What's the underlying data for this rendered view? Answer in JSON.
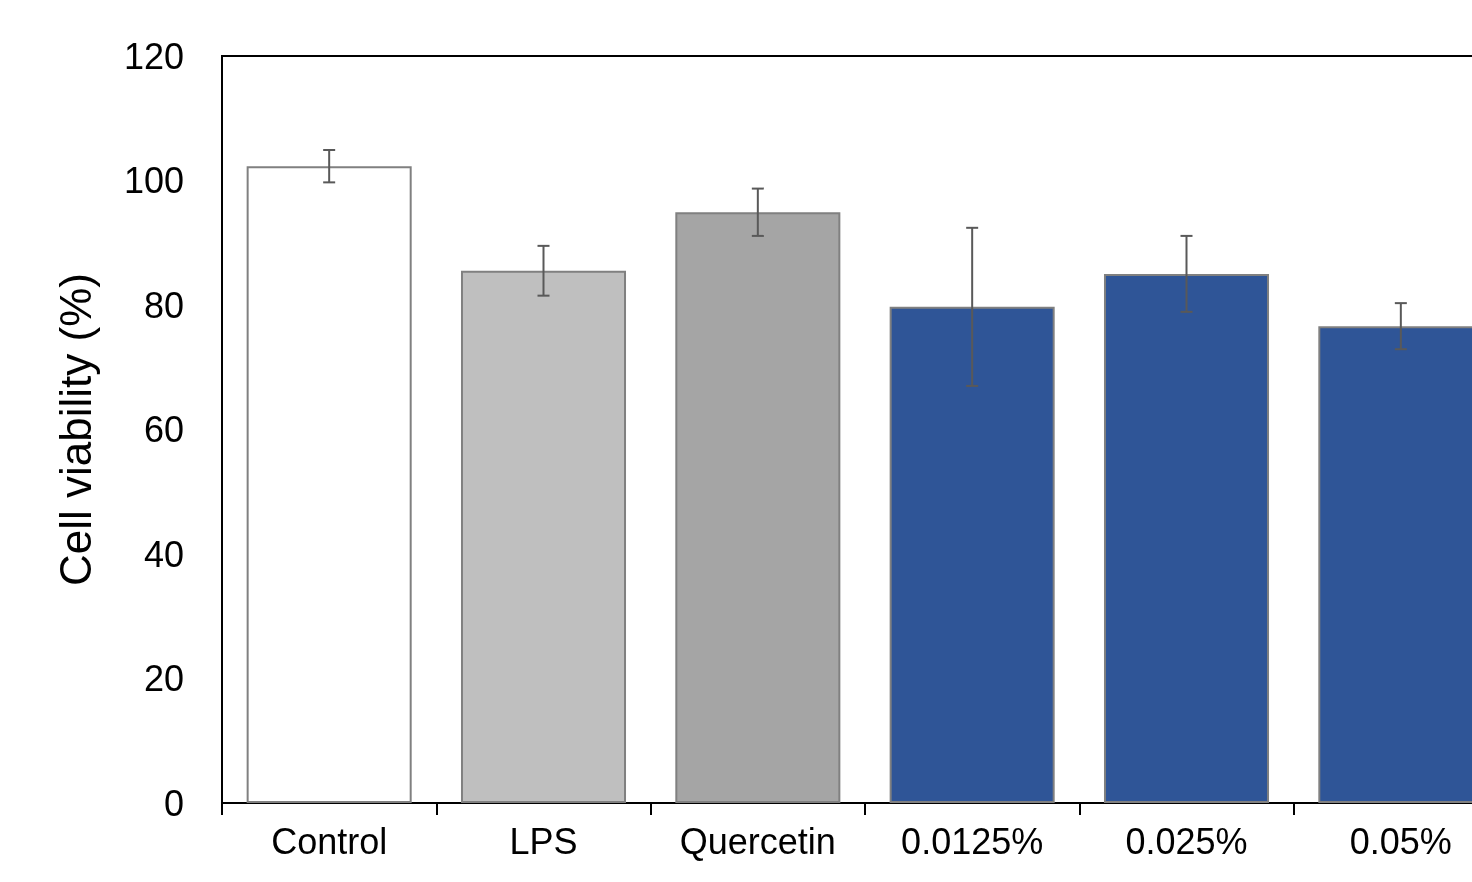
{
  "chart_data": {
    "type": "bar",
    "ylabel": "Cell viability (%)",
    "categories": [
      "Control",
      "LPS",
      "Quercetin",
      "0.0125%",
      "0.025%",
      "0.05%"
    ],
    "values": [
      102.3,
      85.5,
      94.9,
      79.7,
      85.0,
      76.6
    ],
    "colors": [
      "#ffffff",
      "#bfbfbf",
      "#a5a5a5",
      "#2f5597",
      "#2f5597",
      "#2f5597"
    ],
    "errors": [
      2.6,
      4.0,
      3.8,
      12.7,
      6.1,
      3.7
    ],
    "ylim": [
      0,
      120
    ],
    "yticks": [
      0,
      20,
      40,
      60,
      80,
      100,
      120
    ],
    "grid": false
  }
}
